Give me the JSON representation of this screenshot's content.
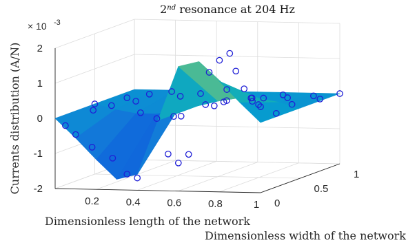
{
  "chart_data": {
    "type": "surface",
    "title_base": "2",
    "title_sup": "nd",
    "title_rest": " resonance at 204 Hz",
    "zlabel": "Currents distribution (A/N)",
    "xlabel": "Dimensionless length of the network",
    "ylabel": "Dimensionless width of the network",
    "z_exponent_base": "× 10",
    "z_exponent_power": "-3",
    "xlim": [
      0,
      1
    ],
    "ylim": [
      0,
      1
    ],
    "zlim": [
      -2,
      2
    ],
    "x_ticks": [
      "0.2",
      "0.4",
      "0.6",
      "0.8",
      "1"
    ],
    "y_ticks": [
      "0",
      "0.5",
      "1"
    ],
    "z_ticks": [
      "2",
      "1",
      "0",
      "-1",
      "-2"
    ],
    "colormap": "parula",
    "marker_color": "#1f1fd6",
    "surface_x": [
      0,
      0.1,
      0.2,
      0.3,
      0.4,
      0.5,
      0.6,
      0.7,
      0.8,
      0.9,
      1.0
    ],
    "surface_y": [
      0,
      0.5,
      1.0
    ],
    "surface_z": [
      [
        0,
        -0.55,
        -1.15,
        -1.7,
        -1.55,
        0.0,
        1.55,
        1.7,
        1.15,
        0.55,
        0
      ],
      [
        0,
        -0.15,
        -0.25,
        -0.25,
        -0.15,
        0.0,
        0.15,
        0.25,
        0.25,
        0.15,
        0
      ],
      [
        0,
        0.0,
        0.0,
        0.0,
        0.0,
        0.0,
        0.0,
        0.0,
        0.0,
        0.0,
        0
      ]
    ],
    "points": [
      {
        "x": 0.0,
        "y": 0.5,
        "z": 0.0
      },
      {
        "x": 0.05,
        "y": 0.0,
        "z": -0.2
      },
      {
        "x": 0.05,
        "y": 0.35,
        "z": -0.05
      },
      {
        "x": 0.08,
        "y": 0.7,
        "z": 0.02
      },
      {
        "x": 0.1,
        "y": 0.0,
        "z": -0.45
      },
      {
        "x": 0.12,
        "y": 0.4,
        "z": 0.05
      },
      {
        "x": 0.15,
        "y": 0.8,
        "z": 0.05
      },
      {
        "x": 0.18,
        "y": 0.0,
        "z": -0.8
      },
      {
        "x": 0.2,
        "y": 0.5,
        "z": 0.1
      },
      {
        "x": 0.22,
        "y": 0.9,
        "z": 0.05
      },
      {
        "x": 0.28,
        "y": 0.0,
        "z": -1.1
      },
      {
        "x": 0.3,
        "y": 0.3,
        "z": -0.05
      },
      {
        "x": 0.32,
        "y": 0.75,
        "z": 0.05
      },
      {
        "x": 0.35,
        "y": 0.0,
        "z": -1.55
      },
      {
        "x": 0.36,
        "y": 0.35,
        "z": -0.25
      },
      {
        "x": 0.38,
        "y": 0.85,
        "z": 0.05
      },
      {
        "x": 0.4,
        "y": 0.0,
        "z": -1.65
      },
      {
        "x": 0.42,
        "y": 0.5,
        "z": -0.3
      },
      {
        "x": 0.45,
        "y": 1.0,
        "z": 0.05
      },
      {
        "x": 0.5,
        "y": 0.2,
        "z": -0.05
      },
      {
        "x": 0.52,
        "y": 0.55,
        "z": 0.0
      },
      {
        "x": 0.55,
        "y": 0.0,
        "z": -0.95
      },
      {
        "x": 0.57,
        "y": 0.65,
        "z": 0.0
      },
      {
        "x": 0.6,
        "y": 0.0,
        "z": -1.2
      },
      {
        "x": 0.62,
        "y": 0.4,
        "z": 0.1
      },
      {
        "x": 0.65,
        "y": 0.0,
        "z": -0.95
      },
      {
        "x": 0.65,
        "y": 0.8,
        "z": 0.0
      },
      {
        "x": 0.7,
        "y": 0.35,
        "z": 0.3
      },
      {
        "x": 0.72,
        "y": 0.7,
        "z": -0.1
      },
      {
        "x": 0.75,
        "y": 0.0,
        "z": 1.4
      },
      {
        "x": 0.78,
        "y": 0.45,
        "z": 0.3
      },
      {
        "x": 0.8,
        "y": 0.0,
        "z": 1.75
      },
      {
        "x": 0.82,
        "y": 0.75,
        "z": 0.15
      },
      {
        "x": 0.85,
        "y": 0.0,
        "z": 1.95
      },
      {
        "x": 0.86,
        "y": 0.4,
        "z": 0.35
      },
      {
        "x": 0.88,
        "y": 0.0,
        "z": 1.45
      },
      {
        "x": 0.9,
        "y": 0.6,
        "z": 0.2
      },
      {
        "x": 0.92,
        "y": 0.0,
        "z": 0.95
      },
      {
        "x": 0.93,
        "y": 0.85,
        "z": 0.05
      },
      {
        "x": 0.96,
        "y": 0.0,
        "z": 0.6
      },
      {
        "x": 0.96,
        "y": 0.5,
        "z": 0.1
      },
      {
        "x": 0.98,
        "y": 0.25,
        "z": 0.05
      },
      {
        "x": 1.0,
        "y": 0.0,
        "z": 0.45
      },
      {
        "x": 1.0,
        "y": 0.75,
        "z": 0.05
      },
      {
        "x": 1.0,
        "y": 1.0,
        "z": 0.0
      }
    ]
  }
}
